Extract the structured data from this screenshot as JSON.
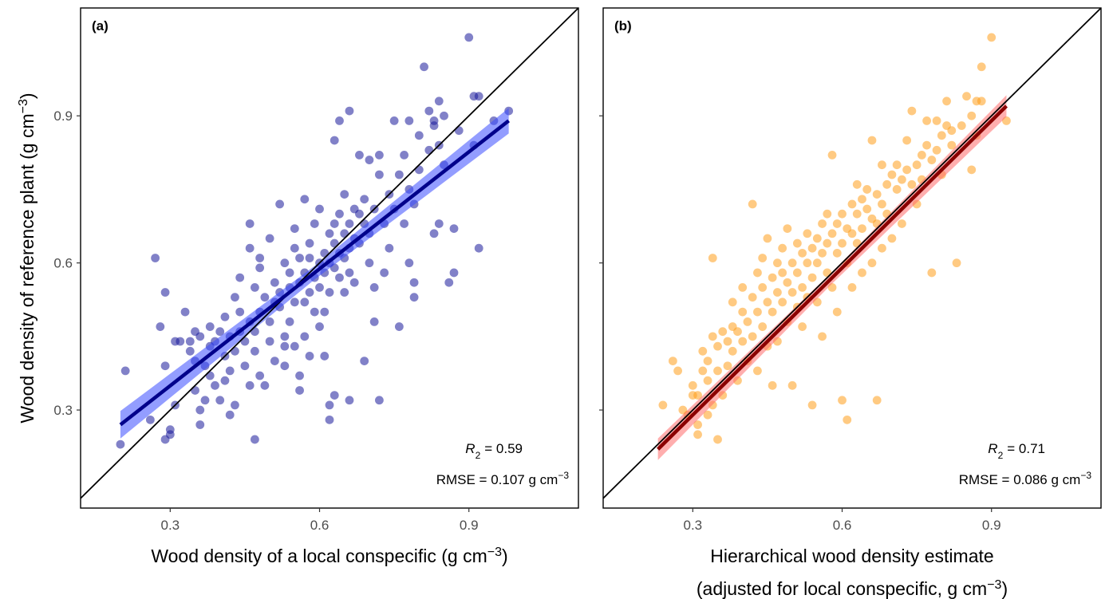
{
  "chart_data": [
    {
      "type": "scatter",
      "panel_label": "(a)",
      "xlabel": "Wood density of a local conspecific (g cm⁻³)",
      "ylabel": "Wood density of reference plant (g cm⁻³)",
      "xlim": [
        0.12,
        1.12
      ],
      "ylim": [
        0.1,
        1.12
      ],
      "xticks": [
        0.3,
        0.6,
        0.9
      ],
      "yticks": [
        0.3,
        0.6,
        0.9
      ],
      "xtick_labels": [
        "0.3",
        "0.6",
        "0.9"
      ],
      "ytick_labels": [
        "0.3",
        "0.6",
        "0.9"
      ],
      "grid": false,
      "point_color": "#1a1a9a",
      "fit_color": "#00008b",
      "ribbon_color": "#3b4cff",
      "identity_line": true,
      "fit": {
        "x": [
          0.2,
          0.98
        ],
        "y": [
          0.27,
          0.89
        ],
        "ribbon_halfwidth": [
          0.028,
          0.014,
          0.026
        ]
      },
      "stats": {
        "r2_text": "= 0.59",
        "rmse_text": "RMSE = 0.107 g cm⁻³"
      },
      "points": [
        [
          0.2,
          0.23
        ],
        [
          0.21,
          0.38
        ],
        [
          0.26,
          0.28
        ],
        [
          0.27,
          0.61
        ],
        [
          0.28,
          0.47
        ],
        [
          0.29,
          0.39
        ],
        [
          0.29,
          0.54
        ],
        [
          0.29,
          0.24
        ],
        [
          0.3,
          0.26
        ],
        [
          0.3,
          0.25
        ],
        [
          0.31,
          0.31
        ],
        [
          0.31,
          0.44
        ],
        [
          0.32,
          0.44
        ],
        [
          0.33,
          0.5
        ],
        [
          0.34,
          0.44
        ],
        [
          0.34,
          0.42
        ],
        [
          0.35,
          0.46
        ],
        [
          0.35,
          0.4
        ],
        [
          0.35,
          0.34
        ],
        [
          0.36,
          0.45
        ],
        [
          0.36,
          0.3
        ],
        [
          0.36,
          0.27
        ],
        [
          0.37,
          0.39
        ],
        [
          0.37,
          0.32
        ],
        [
          0.38,
          0.43
        ],
        [
          0.38,
          0.47
        ],
        [
          0.38,
          0.37
        ],
        [
          0.39,
          0.35
        ],
        [
          0.39,
          0.44
        ],
        [
          0.4,
          0.46
        ],
        [
          0.4,
          0.32
        ],
        [
          0.41,
          0.49
        ],
        [
          0.41,
          0.41
        ],
        [
          0.41,
          0.36
        ],
        [
          0.42,
          0.29
        ],
        [
          0.42,
          0.45
        ],
        [
          0.42,
          0.38
        ],
        [
          0.43,
          0.53
        ],
        [
          0.43,
          0.42
        ],
        [
          0.43,
          0.31
        ],
        [
          0.44,
          0.5
        ],
        [
          0.44,
          0.46
        ],
        [
          0.44,
          0.57
        ],
        [
          0.45,
          0.44
        ],
        [
          0.45,
          0.39
        ],
        [
          0.46,
          0.35
        ],
        [
          0.46,
          0.48
        ],
        [
          0.46,
          0.68
        ],
        [
          0.46,
          0.63
        ],
        [
          0.47,
          0.55
        ],
        [
          0.47,
          0.42
        ],
        [
          0.47,
          0.46
        ],
        [
          0.47,
          0.24
        ],
        [
          0.48,
          0.61
        ],
        [
          0.48,
          0.37
        ],
        [
          0.48,
          0.5
        ],
        [
          0.48,
          0.59
        ],
        [
          0.49,
          0.53
        ],
        [
          0.49,
          0.35
        ],
        [
          0.5,
          0.65
        ],
        [
          0.5,
          0.48
        ],
        [
          0.5,
          0.44
        ],
        [
          0.51,
          0.52
        ],
        [
          0.51,
          0.56
        ],
        [
          0.51,
          0.4
        ],
        [
          0.52,
          0.54
        ],
        [
          0.52,
          0.72
        ],
        [
          0.52,
          0.51
        ],
        [
          0.53,
          0.45
        ],
        [
          0.53,
          0.43
        ],
        [
          0.53,
          0.39
        ],
        [
          0.53,
          0.6
        ],
        [
          0.54,
          0.58
        ],
        [
          0.54,
          0.55
        ],
        [
          0.54,
          0.48
        ],
        [
          0.55,
          0.52
        ],
        [
          0.55,
          0.63
        ],
        [
          0.55,
          0.43
        ],
        [
          0.55,
          0.67
        ],
        [
          0.56,
          0.61
        ],
        [
          0.56,
          0.56
        ],
        [
          0.56,
          0.37
        ],
        [
          0.56,
          0.34
        ],
        [
          0.57,
          0.58
        ],
        [
          0.57,
          0.52
        ],
        [
          0.57,
          0.73
        ],
        [
          0.57,
          0.45
        ],
        [
          0.58,
          0.61
        ],
        [
          0.58,
          0.54
        ],
        [
          0.58,
          0.64
        ],
        [
          0.58,
          0.41
        ],
        [
          0.59,
          0.57
        ],
        [
          0.59,
          0.5
        ],
        [
          0.59,
          0.68
        ],
        [
          0.6,
          0.6
        ],
        [
          0.6,
          0.55
        ],
        [
          0.6,
          0.47
        ],
        [
          0.6,
          0.71
        ],
        [
          0.61,
          0.62
        ],
        [
          0.61,
          0.58
        ],
        [
          0.61,
          0.5
        ],
        [
          0.61,
          0.41
        ],
        [
          0.62,
          0.66
        ],
        [
          0.62,
          0.6
        ],
        [
          0.62,
          0.54
        ],
        [
          0.62,
          0.31
        ],
        [
          0.62,
          0.28
        ],
        [
          0.63,
          0.64
        ],
        [
          0.63,
          0.59
        ],
        [
          0.63,
          0.68
        ],
        [
          0.63,
          0.33
        ],
        [
          0.63,
          0.85
        ],
        [
          0.64,
          0.7
        ],
        [
          0.64,
          0.62
        ],
        [
          0.64,
          0.57
        ],
        [
          0.64,
          0.89
        ],
        [
          0.65,
          0.66
        ],
        [
          0.65,
          0.61
        ],
        [
          0.65,
          0.74
        ],
        [
          0.65,
          0.54
        ],
        [
          0.66,
          0.68
        ],
        [
          0.66,
          0.63
        ],
        [
          0.66,
          0.58
        ],
        [
          0.66,
          0.91
        ],
        [
          0.66,
          0.32
        ],
        [
          0.67,
          0.65
        ],
        [
          0.67,
          0.71
        ],
        [
          0.67,
          0.56
        ],
        [
          0.68,
          0.7
        ],
        [
          0.68,
          0.64
        ],
        [
          0.68,
          0.82
        ],
        [
          0.69,
          0.73
        ],
        [
          0.69,
          0.68
        ],
        [
          0.69,
          0.4
        ],
        [
          0.7,
          0.66
        ],
        [
          0.7,
          0.81
        ],
        [
          0.7,
          0.6
        ],
        [
          0.71,
          0.71
        ],
        [
          0.71,
          0.55
        ],
        [
          0.71,
          0.48
        ],
        [
          0.72,
          0.82
        ],
        [
          0.72,
          0.32
        ],
        [
          0.72,
          0.78
        ],
        [
          0.73,
          0.68
        ],
        [
          0.73,
          0.58
        ],
        [
          0.74,
          0.74
        ],
        [
          0.74,
          0.63
        ],
        [
          0.75,
          0.71
        ],
        [
          0.75,
          0.89
        ],
        [
          0.76,
          0.78
        ],
        [
          0.76,
          0.47
        ],
        [
          0.77,
          0.82
        ],
        [
          0.77,
          0.68
        ],
        [
          0.78,
          0.89
        ],
        [
          0.78,
          0.75
        ],
        [
          0.78,
          0.6
        ],
        [
          0.79,
          0.72
        ],
        [
          0.79,
          0.56
        ],
        [
          0.79,
          0.53
        ],
        [
          0.8,
          0.79
        ],
        [
          0.8,
          0.86
        ],
        [
          0.81,
          1.0
        ],
        [
          0.82,
          0.91
        ],
        [
          0.82,
          0.83
        ],
        [
          0.83,
          0.89
        ],
        [
          0.83,
          0.88
        ],
        [
          0.83,
          0.66
        ],
        [
          0.84,
          0.93
        ],
        [
          0.84,
          0.84
        ],
        [
          0.84,
          0.68
        ],
        [
          0.85,
          0.9
        ],
        [
          0.85,
          0.8
        ],
        [
          0.86,
          0.56
        ],
        [
          0.87,
          0.67
        ],
        [
          0.87,
          0.58
        ],
        [
          0.88,
          0.87
        ],
        [
          0.9,
          1.06
        ],
        [
          0.91,
          0.84
        ],
        [
          0.91,
          0.94
        ],
        [
          0.92,
          0.63
        ],
        [
          0.92,
          0.94
        ],
        [
          0.95,
          0.89
        ],
        [
          0.98,
          0.91
        ]
      ]
    },
    {
      "type": "scatter",
      "panel_label": "(b)",
      "xlabel": "Hierarchical wood density estimate",
      "xlabel_line2": "(adjusted for local conspecific, g cm⁻³)",
      "ylabel": "",
      "xlim": [
        0.12,
        1.12
      ],
      "ylim": [
        0.1,
        1.12
      ],
      "xticks": [
        0.3,
        0.6,
        0.9
      ],
      "yticks": [
        0.3,
        0.6,
        0.9
      ],
      "xtick_labels": [
        "0.3",
        "0.6",
        "0.9"
      ],
      "ytick_labels": [],
      "grid": false,
      "point_color": "#ff9f1c",
      "fit_color": "#8b0000",
      "ribbon_color": "#ff6b6b",
      "identity_line": true,
      "fit": {
        "x": [
          0.23,
          0.93
        ],
        "y": [
          0.22,
          0.92
        ],
        "ribbon_halfwidth": [
          0.022,
          0.012,
          0.022
        ]
      },
      "stats": {
        "r2_text": "= 0.71",
        "rmse_text": "RMSE = 0.086 g cm⁻³"
      },
      "points": [
        [
          0.24,
          0.31
        ],
        [
          0.26,
          0.4
        ],
        [
          0.27,
          0.38
        ],
        [
          0.28,
          0.3
        ],
        [
          0.29,
          0.29
        ],
        [
          0.3,
          0.33
        ],
        [
          0.3,
          0.35
        ],
        [
          0.31,
          0.25
        ],
        [
          0.31,
          0.27
        ],
        [
          0.31,
          0.33
        ],
        [
          0.32,
          0.42
        ],
        [
          0.32,
          0.38
        ],
        [
          0.33,
          0.4
        ],
        [
          0.33,
          0.29
        ],
        [
          0.33,
          0.36
        ],
        [
          0.34,
          0.61
        ],
        [
          0.34,
          0.31
        ],
        [
          0.34,
          0.45
        ],
        [
          0.35,
          0.43
        ],
        [
          0.35,
          0.38
        ],
        [
          0.35,
          0.24
        ],
        [
          0.36,
          0.46
        ],
        [
          0.36,
          0.33
        ],
        [
          0.37,
          0.44
        ],
        [
          0.37,
          0.39
        ],
        [
          0.38,
          0.47
        ],
        [
          0.38,
          0.42
        ],
        [
          0.38,
          0.52
        ],
        [
          0.39,
          0.46
        ],
        [
          0.39,
          0.36
        ],
        [
          0.4,
          0.5
        ],
        [
          0.4,
          0.44
        ],
        [
          0.4,
          0.55
        ],
        [
          0.41,
          0.48
        ],
        [
          0.41,
          0.4
        ],
        [
          0.42,
          0.72
        ],
        [
          0.42,
          0.53
        ],
        [
          0.42,
          0.45
        ],
        [
          0.43,
          0.5
        ],
        [
          0.43,
          0.58
        ],
        [
          0.43,
          0.38
        ],
        [
          0.44,
          0.55
        ],
        [
          0.44,
          0.47
        ],
        [
          0.44,
          0.61
        ],
        [
          0.45,
          0.52
        ],
        [
          0.45,
          0.43
        ],
        [
          0.45,
          0.65
        ],
        [
          0.46,
          0.57
        ],
        [
          0.46,
          0.5
        ],
        [
          0.46,
          0.35
        ],
        [
          0.47,
          0.54
        ],
        [
          0.47,
          0.6
        ],
        [
          0.47,
          0.44
        ],
        [
          0.48,
          0.58
        ],
        [
          0.48,
          0.52
        ],
        [
          0.48,
          0.63
        ],
        [
          0.49,
          0.56
        ],
        [
          0.49,
          0.48
        ],
        [
          0.49,
          0.67
        ],
        [
          0.5,
          0.6
        ],
        [
          0.5,
          0.54
        ],
        [
          0.5,
          0.35
        ],
        [
          0.51,
          0.58
        ],
        [
          0.51,
          0.51
        ],
        [
          0.51,
          0.64
        ],
        [
          0.52,
          0.62
        ],
        [
          0.52,
          0.55
        ],
        [
          0.52,
          0.47
        ],
        [
          0.53,
          0.6
        ],
        [
          0.53,
          0.66
        ],
        [
          0.53,
          0.53
        ],
        [
          0.54,
          0.63
        ],
        [
          0.54,
          0.57
        ],
        [
          0.54,
          0.31
        ],
        [
          0.55,
          0.65
        ],
        [
          0.55,
          0.6
        ],
        [
          0.55,
          0.52
        ],
        [
          0.56,
          0.68
        ],
        [
          0.56,
          0.62
        ],
        [
          0.56,
          0.45
        ],
        [
          0.57,
          0.64
        ],
        [
          0.57,
          0.58
        ],
        [
          0.57,
          0.7
        ],
        [
          0.58,
          0.66
        ],
        [
          0.58,
          0.55
        ],
        [
          0.58,
          0.82
        ],
        [
          0.59,
          0.68
        ],
        [
          0.59,
          0.62
        ],
        [
          0.59,
          0.5
        ],
        [
          0.6,
          0.7
        ],
        [
          0.6,
          0.64
        ],
        [
          0.6,
          0.32
        ],
        [
          0.61,
          0.67
        ],
        [
          0.61,
          0.6
        ],
        [
          0.61,
          0.28
        ],
        [
          0.62,
          0.72
        ],
        [
          0.62,
          0.66
        ],
        [
          0.62,
          0.55
        ],
        [
          0.63,
          0.7
        ],
        [
          0.63,
          0.64
        ],
        [
          0.63,
          0.76
        ],
        [
          0.64,
          0.73
        ],
        [
          0.64,
          0.67
        ],
        [
          0.64,
          0.58
        ],
        [
          0.65,
          0.71
        ],
        [
          0.65,
          0.75
        ],
        [
          0.66,
          0.69
        ],
        [
          0.66,
          0.85
        ],
        [
          0.66,
          0.6
        ],
        [
          0.67,
          0.74
        ],
        [
          0.67,
          0.68
        ],
        [
          0.67,
          0.32
        ],
        [
          0.68,
          0.72
        ],
        [
          0.68,
          0.8
        ],
        [
          0.68,
          0.63
        ],
        [
          0.69,
          0.76
        ],
        [
          0.69,
          0.7
        ],
        [
          0.7,
          0.78
        ],
        [
          0.7,
          0.65
        ],
        [
          0.71,
          0.75
        ],
        [
          0.71,
          0.8
        ],
        [
          0.72,
          0.77
        ],
        [
          0.72,
          0.68
        ],
        [
          0.73,
          0.79
        ],
        [
          0.73,
          0.85
        ],
        [
          0.74,
          0.76
        ],
        [
          0.74,
          0.91
        ],
        [
          0.75,
          0.8
        ],
        [
          0.75,
          0.72
        ],
        [
          0.76,
          0.82
        ],
        [
          0.76,
          0.77
        ],
        [
          0.77,
          0.84
        ],
        [
          0.77,
          0.89
        ],
        [
          0.78,
          0.81
        ],
        [
          0.78,
          0.58
        ],
        [
          0.79,
          0.83
        ],
        [
          0.79,
          0.89
        ],
        [
          0.8,
          0.86
        ],
        [
          0.8,
          0.78
        ],
        [
          0.81,
          0.88
        ],
        [
          0.81,
          0.93
        ],
        [
          0.82,
          0.84
        ],
        [
          0.82,
          0.87
        ],
        [
          0.83,
          0.6
        ],
        [
          0.84,
          0.88
        ],
        [
          0.85,
          0.94
        ],
        [
          0.86,
          0.9
        ],
        [
          0.86,
          0.79
        ],
        [
          0.87,
          0.93
        ],
        [
          0.87,
          0.86
        ],
        [
          0.88,
          1.0
        ],
        [
          0.88,
          0.93
        ],
        [
          0.9,
          1.06
        ],
        [
          0.93,
          0.89
        ]
      ]
    }
  ]
}
